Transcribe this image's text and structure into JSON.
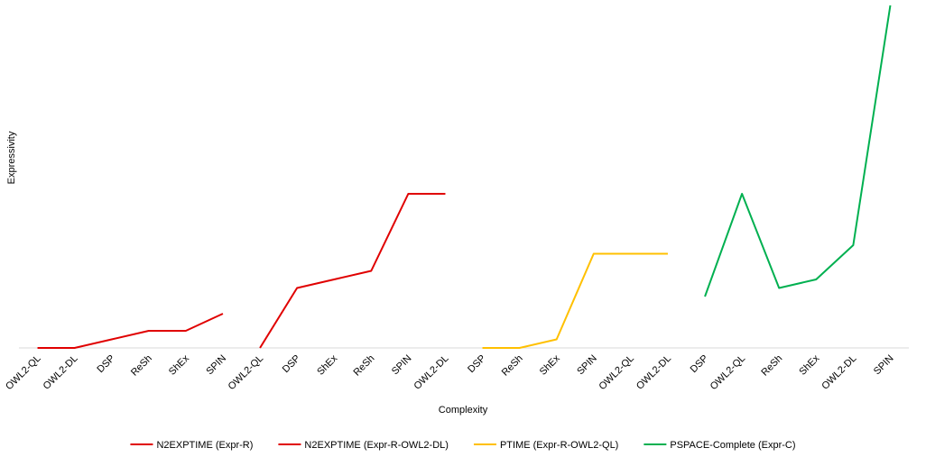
{
  "chart_data": {
    "type": "line",
    "x_label": "Complexity",
    "y_label": "Expressivity",
    "categories": [
      "OWL2-QL",
      "OWL2-DL",
      "DSP",
      "ReSh",
      "ShEx",
      "SPIN",
      "OWL2-QL",
      "DSP",
      "ShEx",
      "ReSh",
      "SPIN",
      "OWL2-DL",
      "DSP",
      "ReSh",
      "ShEx",
      "SPIN",
      "OWL2-QL",
      "OWL2-DL",
      "DSP",
      "OWL2-QL",
      "ReSh",
      "ShEx",
      "OWL2-DL",
      "SPIN"
    ],
    "series": [
      {
        "name": "N2EXPTIME (Expr-R)",
        "color": "#e00000",
        "values": [
          0,
          0,
          0.5,
          1,
          1,
          2,
          null,
          null,
          null,
          null,
          null,
          null,
          null,
          null,
          null,
          null,
          null,
          null,
          null,
          null,
          null,
          null,
          null,
          null
        ]
      },
      {
        "name": "N2EXPTIME (Expr-R-OWL2-DL)",
        "color": "#e00000",
        "values": [
          null,
          null,
          null,
          null,
          null,
          null,
          0,
          3.5,
          4,
          4.5,
          9,
          9,
          null,
          null,
          null,
          null,
          null,
          null,
          null,
          null,
          null,
          null,
          null,
          null
        ]
      },
      {
        "name": "PTIME (Expr-R-OWL2-QL)",
        "color": "#ffc000",
        "values": [
          null,
          null,
          null,
          null,
          null,
          null,
          null,
          null,
          null,
          null,
          null,
          null,
          0,
          0,
          0.5,
          5.5,
          5.5,
          5.5,
          null,
          null,
          null,
          null,
          null,
          null
        ]
      },
      {
        "name": "PSPACE-Complete (Expr-C)",
        "color": "#00b050",
        "values": [
          null,
          null,
          null,
          null,
          null,
          null,
          null,
          null,
          null,
          null,
          null,
          null,
          null,
          null,
          null,
          null,
          null,
          null,
          3,
          9,
          3.5,
          4,
          6,
          20
        ]
      }
    ],
    "ylim": [
      0,
      20
    ],
    "legend": "bottom"
  }
}
